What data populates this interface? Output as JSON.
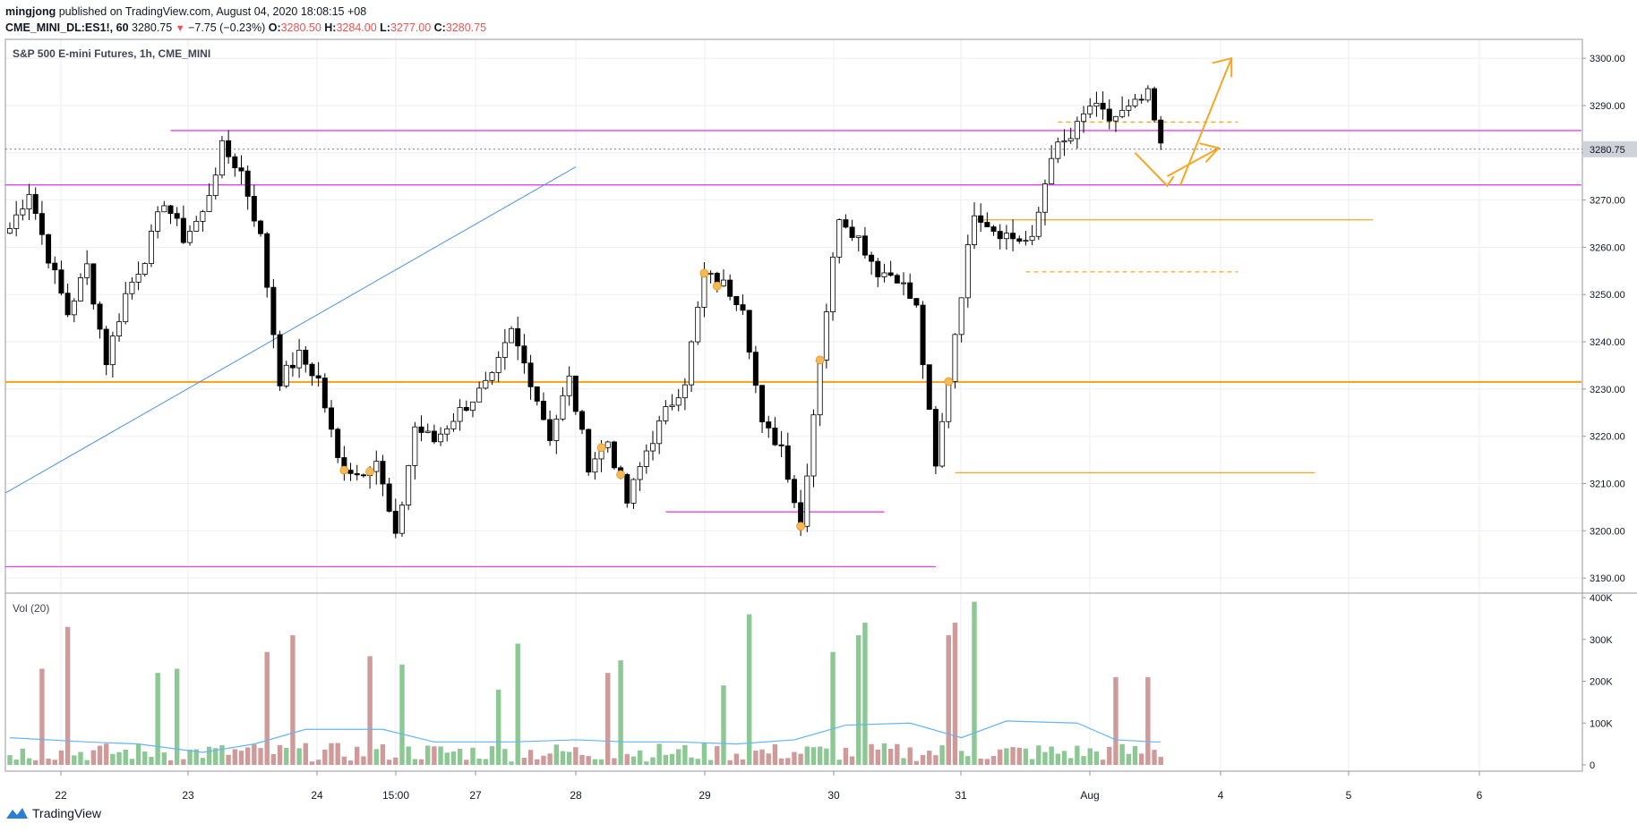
{
  "header": {
    "user": "mingjong",
    "published_text": "published on TradingView.com, August 04, 2020 18:08:15 +08",
    "symbol": "CME_MINI_DL:ES1!, 60",
    "last": "3280.75",
    "change": "−7.75 (−0.23%)",
    "o_label": "O:",
    "o_value": "3280.50",
    "h_label": "H:",
    "h_value": "3284.00",
    "l_label": "L:",
    "l_value": "3277.00",
    "c_label": "C:",
    "c_value": "3280.75"
  },
  "chart_title": "S&P 500 E-mini Futures, 1h, CME_MINI",
  "volume_title": "Vol (20)",
  "price_label": "3280.75",
  "footer": {
    "brand": "TradingView"
  },
  "colors": {
    "up_candle": "#ffffff",
    "down_candle": "#000000",
    "vol_up": "#8cc893",
    "vol_down": "#cf9a9a",
    "vol_ma": "#64b5f6",
    "magenta_lines": "#e040fb",
    "orange_lines": "#f5a623",
    "trend_line": "#4a90e2"
  },
  "chart_data": [
    {
      "type": "candlestick",
      "title": "S&P 500 E-mini Futures, 1h, CME_MINI",
      "x_ticks": [
        "22",
        "23",
        "24",
        "15:00",
        "27",
        "28",
        "29",
        "30",
        "31",
        "Aug",
        "4",
        "5",
        "6"
      ],
      "y_ticks": [
        "3300.00",
        "3290.00",
        "3280.00",
        "3270.00",
        "3260.00",
        "3250.00",
        "3240.00",
        "3230.00",
        "3220.00",
        "3210.00",
        "3200.00",
        "3190.00"
      ],
      "ylim": [
        3187,
        3304
      ],
      "current_price": 3280.75,
      "candle_anchors": [
        {
          "x": 0,
          "price": 3264
        },
        {
          "x": 3,
          "price": 3272
        },
        {
          "x": 6,
          "price": 3258
        },
        {
          "x": 9,
          "price": 3246
        },
        {
          "x": 12,
          "price": 3256
        },
        {
          "x": 15,
          "price": 3236
        },
        {
          "x": 18,
          "price": 3250
        },
        {
          "x": 21,
          "price": 3258
        },
        {
          "x": 24,
          "price": 3270
        },
        {
          "x": 27,
          "price": 3262
        },
        {
          "x": 30,
          "price": 3267
        },
        {
          "x": 33,
          "price": 3281
        },
        {
          "x": 36,
          "price": 3276
        },
        {
          "x": 39,
          "price": 3262
        },
        {
          "x": 42,
          "price": 3232
        },
        {
          "x": 45,
          "price": 3237
        },
        {
          "x": 48,
          "price": 3232
        },
        {
          "x": 51,
          "price": 3215
        },
        {
          "x": 54,
          "price": 3212
        },
        {
          "x": 57,
          "price": 3215
        },
        {
          "x": 60,
          "price": 3198
        },
        {
          "x": 63,
          "price": 3222
        },
        {
          "x": 66,
          "price": 3219
        },
        {
          "x": 69,
          "price": 3224
        },
        {
          "x": 72,
          "price": 3228
        },
        {
          "x": 75,
          "price": 3232
        },
        {
          "x": 78,
          "price": 3242
        },
        {
          "x": 81,
          "price": 3232
        },
        {
          "x": 84,
          "price": 3220
        },
        {
          "x": 87,
          "price": 3232
        },
        {
          "x": 90,
          "price": 3214
        },
        {
          "x": 93,
          "price": 3219
        },
        {
          "x": 96,
          "price": 3206
        },
        {
          "x": 99,
          "price": 3217
        },
        {
          "x": 102,
          "price": 3225
        },
        {
          "x": 105,
          "price": 3232
        },
        {
          "x": 108,
          "price": 3254
        },
        {
          "x": 111,
          "price": 3252
        },
        {
          "x": 114,
          "price": 3248
        },
        {
          "x": 117,
          "price": 3222
        },
        {
          "x": 120,
          "price": 3218
        },
        {
          "x": 123,
          "price": 3201
        },
        {
          "x": 126,
          "price": 3237
        },
        {
          "x": 129,
          "price": 3267
        },
        {
          "x": 132,
          "price": 3262
        },
        {
          "x": 135,
          "price": 3255
        },
        {
          "x": 138,
          "price": 3254
        },
        {
          "x": 141,
          "price": 3247
        },
        {
          "x": 144,
          "price": 3213
        },
        {
          "x": 147,
          "price": 3242
        },
        {
          "x": 150,
          "price": 3268
        },
        {
          "x": 153,
          "price": 3264
        },
        {
          "x": 156,
          "price": 3262
        },
        {
          "x": 159,
          "price": 3261
        },
        {
          "x": 162,
          "price": 3280
        },
        {
          "x": 165,
          "price": 3283
        },
        {
          "x": 168,
          "price": 3290
        },
        {
          "x": 171,
          "price": 3287
        },
        {
          "x": 174,
          "price": 3289
        },
        {
          "x": 177,
          "price": 3292
        },
        {
          "x": 179,
          "price": 3281
        }
      ],
      "levels": [
        {
          "price": 3284.7,
          "from_x": 25,
          "to_x": "end",
          "color": "magenta"
        },
        {
          "price": 3273.2,
          "from_x": -1,
          "to_x": "end",
          "color": "magenta"
        },
        {
          "price": 3231.5,
          "from_x": -1,
          "to_x": "end",
          "color": "orange"
        },
        {
          "price": 3265.8,
          "from_x": 150,
          "to_x": 212,
          "color": "orange"
        },
        {
          "price": 3212.3,
          "from_x": 147,
          "to_x": 203,
          "color": "orange"
        },
        {
          "price": 3286.5,
          "from_x": 163,
          "to_x": 191,
          "color": "orange",
          "dashed": true
        },
        {
          "price": 3254.8,
          "from_x": 158,
          "to_x": 191,
          "color": "orange",
          "dashed": true
        },
        {
          "price": 3204.0,
          "from_x": 102,
          "to_x": 136,
          "color": "magenta"
        },
        {
          "price": 3192.4,
          "from_x": -1,
          "to_x": 144,
          "color": "magenta"
        }
      ],
      "trend_line": {
        "from": {
          "x": -1,
          "price": 3208
        },
        "to": {
          "x": 88,
          "price": 3277
        }
      },
      "volume": {
        "title": "Vol (20)",
        "y_ticks": [
          "400K",
          "300K",
          "200K",
          "100K",
          "0"
        ],
        "ylim": [
          0,
          400000
        ],
        "spikes": [
          {
            "x": 5,
            "value": 230000,
            "dir": "down"
          },
          {
            "x": 9,
            "value": 330000,
            "dir": "down"
          },
          {
            "x": 23,
            "value": 220000,
            "dir": "up"
          },
          {
            "x": 26,
            "value": 230000,
            "dir": "up"
          },
          {
            "x": 40,
            "value": 270000,
            "dir": "down"
          },
          {
            "x": 44,
            "value": 310000,
            "dir": "down"
          },
          {
            "x": 56,
            "value": 260000,
            "dir": "down"
          },
          {
            "x": 61,
            "value": 240000,
            "dir": "up"
          },
          {
            "x": 76,
            "value": 180000,
            "dir": "up"
          },
          {
            "x": 79,
            "value": 290000,
            "dir": "up"
          },
          {
            "x": 93,
            "value": 220000,
            "dir": "down"
          },
          {
            "x": 95,
            "value": 250000,
            "dir": "up"
          },
          {
            "x": 111,
            "value": 190000,
            "dir": "up"
          },
          {
            "x": 115,
            "value": 360000,
            "dir": "up"
          },
          {
            "x": 128,
            "value": 270000,
            "dir": "up"
          },
          {
            "x": 132,
            "value": 310000,
            "dir": "up"
          },
          {
            "x": 133,
            "value": 340000,
            "dir": "up"
          },
          {
            "x": 146,
            "value": 310000,
            "dir": "down"
          },
          {
            "x": 147,
            "value": 340000,
            "dir": "down"
          },
          {
            "x": 150,
            "value": 390000,
            "dir": "up"
          },
          {
            "x": 172,
            "value": 210000,
            "dir": "down"
          },
          {
            "x": 177,
            "value": 210000,
            "dir": "down"
          }
        ],
        "ma_anchors": [
          {
            "x": 0,
            "value": 65000
          },
          {
            "x": 12,
            "value": 55000
          },
          {
            "x": 20,
            "value": 50000
          },
          {
            "x": 30,
            "value": 30000
          },
          {
            "x": 38,
            "value": 50000
          },
          {
            "x": 46,
            "value": 85000
          },
          {
            "x": 58,
            "value": 85000
          },
          {
            "x": 66,
            "value": 55000
          },
          {
            "x": 78,
            "value": 55000
          },
          {
            "x": 88,
            "value": 60000
          },
          {
            "x": 96,
            "value": 55000
          },
          {
            "x": 104,
            "value": 55000
          },
          {
            "x": 113,
            "value": 50000
          },
          {
            "x": 122,
            "value": 60000
          },
          {
            "x": 130,
            "value": 95000
          },
          {
            "x": 140,
            "value": 100000
          },
          {
            "x": 148,
            "value": 65000
          },
          {
            "x": 155,
            "value": 105000
          },
          {
            "x": 166,
            "value": 100000
          },
          {
            "x": 172,
            "value": 60000
          },
          {
            "x": 178,
            "value": 55000
          },
          {
            "x": 179,
            "value": 55000
          }
        ]
      }
    }
  ]
}
